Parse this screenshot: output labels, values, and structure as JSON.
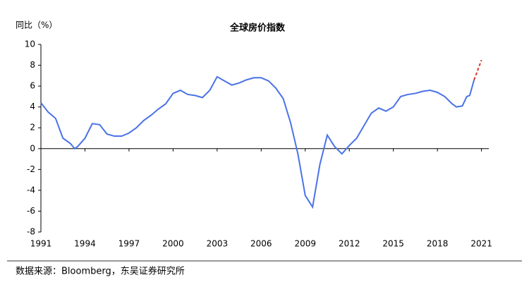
{
  "chart_data": {
    "type": "line",
    "title": "全球房价指数",
    "y_label": "同比（%）",
    "source": "数据来源：Bloomberg，东吴证券研究所",
    "series": [
      {
        "color": "#4a72e8",
        "dashed": false,
        "x": [
          1991,
          1991.5,
          1992,
          1992.5,
          1993,
          1993.3,
          1993.5,
          1994,
          1994.5,
          1995,
          1995.5,
          1996,
          1996.5,
          1997,
          1997.5,
          1998,
          1998.5,
          1999,
          1999.5,
          2000,
          2000.5,
          2001,
          2001.5,
          2002,
          2002.5,
          2003,
          2003.5,
          2004,
          2004.5,
          2005,
          2005.5,
          2006,
          2006.5,
          2007,
          2007.5,
          2008,
          2008.5,
          2009,
          2009.5,
          2010,
          2010.5,
          2011,
          2011.5,
          2012,
          2012.5,
          2013,
          2013.5,
          2014,
          2014.5,
          2015,
          2015.5,
          2016,
          2016.5,
          2017,
          2017.5,
          2018,
          2018.5,
          2019,
          2019.3,
          2019.7,
          2020,
          2020.2,
          2020.5
        ],
        "values": [
          4.4,
          3.5,
          2.9,
          1.0,
          0.5,
          0.0,
          0.2,
          1.0,
          2.4,
          2.3,
          1.4,
          1.2,
          1.2,
          1.5,
          2.0,
          2.7,
          3.2,
          3.8,
          4.3,
          5.3,
          5.6,
          5.2,
          5.1,
          4.9,
          5.6,
          6.9,
          6.5,
          6.1,
          6.3,
          6.6,
          6.8,
          6.8,
          6.5,
          5.8,
          4.8,
          2.5,
          -0.5,
          -4.5,
          -5.6,
          -1.5,
          1.3,
          0.2,
          -0.5,
          0.3,
          1.0,
          2.2,
          3.4,
          3.9,
          3.6,
          4.0,
          5.0,
          5.2,
          5.3,
          5.5,
          5.6,
          5.4,
          5.0,
          4.3,
          4.0,
          4.1,
          5.0,
          5.1,
          6.6
        ]
      },
      {
        "color": "#d9312b",
        "dashed": true,
        "x": [
          2020.5,
          2021
        ],
        "values": [
          6.6,
          8.5
        ]
      }
    ],
    "xlim": [
      1991,
      2021.5
    ],
    "xticks": [
      1991,
      1994,
      1997,
      2000,
      2003,
      2006,
      2009,
      2012,
      2015,
      2018,
      2021
    ],
    "ylim": [
      -8,
      10
    ],
    "yticks": [
      -8,
      -6,
      -4,
      -2,
      0,
      2,
      4,
      6,
      8,
      10
    ]
  }
}
